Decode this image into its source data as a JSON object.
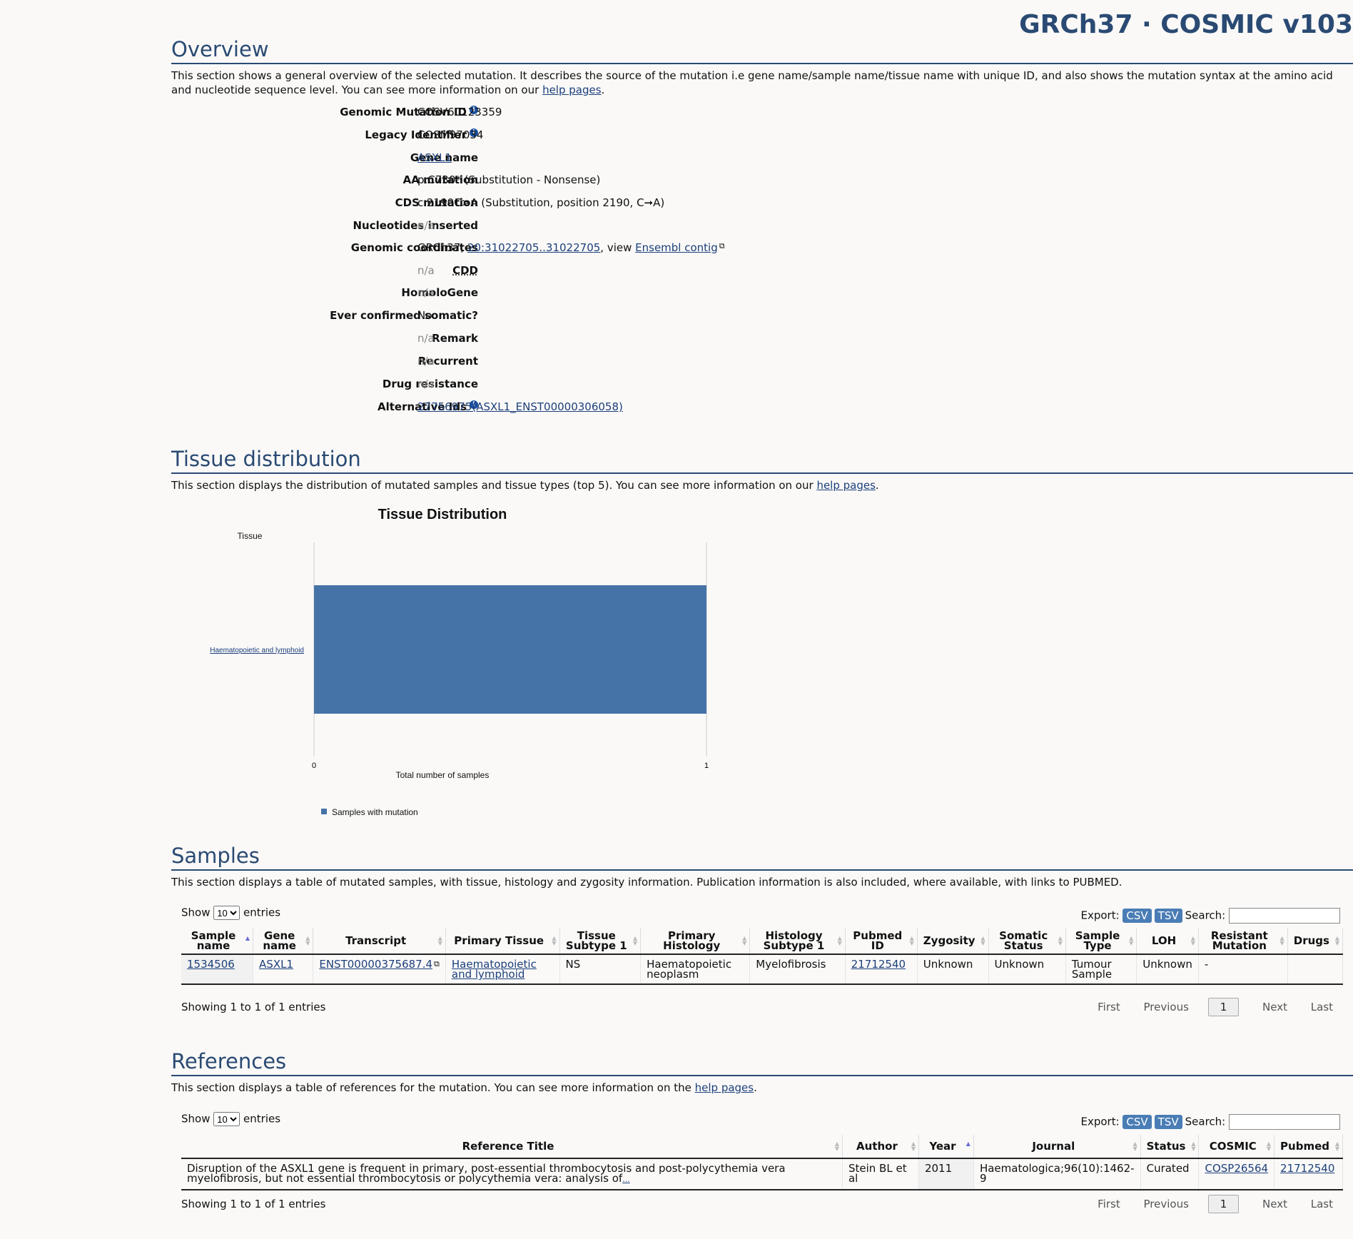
{
  "version_title": "GRCh37 · COSMIC v103",
  "overview": {
    "title": "Overview",
    "desc_pre": "This section shows a general overview of the selected mutation. It describes the source of the mutation i.e gene name/sample name/tissue name with unique ID, and also shows the mutation syntax at the amino acid and nucleotide sequence level. You can see more information on our ",
    "desc_link": "help pages",
    "desc_post": ".",
    "rows": [
      {
        "label": "Genomic Mutation ID",
        "value": "COSV60123359"
      },
      {
        "label": "Legacy Identifier",
        "value": "COSM97034"
      },
      {
        "label": "Gene name",
        "value": "ASXL1"
      },
      {
        "label": "AA mutation",
        "value": "p.C730* (Substitution - Nonsense)"
      },
      {
        "label": "CDS mutation",
        "value": "c.2190C>A (Substitution, position 2190, C➞A)"
      },
      {
        "label": "Nucleotides inserted",
        "value": "n/a"
      },
      {
        "label": "Genomic coordinates",
        "value_pre": "GRCh37, ",
        "value_link": "20:31022705..31022705",
        "value_mid": ", view ",
        "value_link2": "Ensembl contig"
      },
      {
        "label": "CDD",
        "value": "n/a"
      },
      {
        "label": "HomoloGene",
        "value": "n/a"
      },
      {
        "label": "Ever confirmed somatic?",
        "value": "No"
      },
      {
        "label": "Remark",
        "value": "n/a"
      },
      {
        "label": "Recurrent",
        "value": "n/a"
      },
      {
        "label": "Drug resistance",
        "value": "n/a"
      },
      {
        "label": "Alternative Ids",
        "value": "27756975(ASXL1_ENST00000306058)"
      }
    ]
  },
  "tissue": {
    "title": "Tissue distribution",
    "desc_pre": "This section displays the distribution of mutated samples and tissue types (top 5). You can see more information on our ",
    "desc_link": "help pages",
    "desc_post": "."
  },
  "chart_data": {
    "type": "bar",
    "orientation": "horizontal",
    "title": "Tissue Distribution",
    "ylabel": "Tissue",
    "xlabel": "Total number of samples",
    "categories": [
      "Haematopoietic and lymphoid"
    ],
    "series": [
      {
        "name": "Samples with mutation",
        "values": [
          1
        ],
        "color": "#4673a7"
      }
    ],
    "xlim": [
      0,
      1
    ],
    "x_ticks": [
      "0",
      "1"
    ],
    "legend": "bottom-left"
  },
  "samples": {
    "title": "Samples",
    "desc": "This section displays a table of mutated samples, with tissue, histology and zygosity information. Publication information is also included, where available, with links to PUBMED.",
    "show_label": "Show",
    "show_value": "10",
    "entries_label": "entries",
    "export_label": "Export:",
    "csv": "CSV",
    "tsv": "TSV",
    "search_label": "Search:",
    "columns": [
      "Sample name",
      "Gene name",
      "Transcript",
      "Primary Tissue",
      "Tissue Subtype 1",
      "Primary Histology",
      "Histology Subtype 1",
      "Pubmed ID",
      "Zygosity",
      "Somatic Status",
      "Sample Type",
      "LOH",
      "Resistant Mutation",
      "Drugs"
    ],
    "rows": [
      [
        "1534506",
        "ASXL1",
        "ENST00000375687.4",
        "Haematopoietic and lymphoid",
        "NS",
        "Haematopoietic neoplasm",
        "Myelofibrosis",
        "21712540",
        "Unknown",
        "Unknown",
        "Tumour Sample",
        "Unknown",
        "-",
        ""
      ]
    ],
    "info": "Showing 1 to 1 of 1 entries",
    "pager": {
      "first": "First",
      "previous": "Previous",
      "current": "1",
      "next": "Next",
      "last": "Last"
    }
  },
  "references": {
    "title": "References",
    "desc_pre": "This section displays a table of references for the mutation. You can see more information on the ",
    "desc_link": "help pages",
    "desc_post": ".",
    "show_label": "Show",
    "show_value": "10",
    "entries_label": "entries",
    "export_label": "Export:",
    "csv": "CSV",
    "tsv": "TSV",
    "search_label": "Search:",
    "columns": [
      "Reference Title",
      "Author",
      "Year",
      "Journal",
      "Status",
      "COSMIC",
      "Pubmed"
    ],
    "rows": [
      [
        "Disruption of the ASXL1 gene is frequent in primary, post-essential thrombocytosis and post-polycythemia vera myelofibrosis, but not essential thrombocytosis or polycythemia vera: analysis of",
        "Stein BL et al",
        "2011",
        "Haematologica;96(10):1462-9",
        "Curated",
        "COSP26564",
        "21712540"
      ]
    ],
    "info": "Showing 1 to 1 of 1 entries",
    "pager": {
      "first": "First",
      "previous": "Previous",
      "current": "1",
      "next": "Next",
      "last": "Last"
    }
  }
}
